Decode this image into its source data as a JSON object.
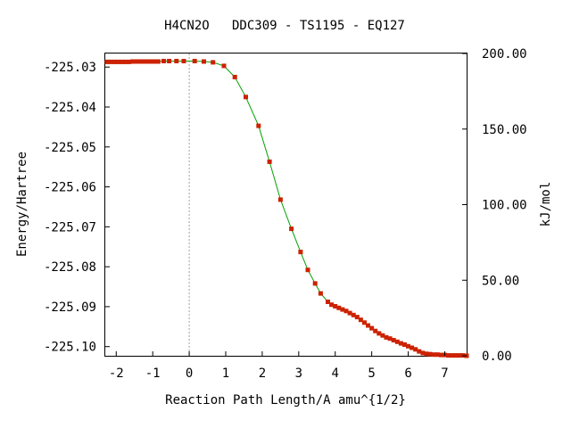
{
  "chart_data": {
    "type": "scatter",
    "title": "H4CN2O   DDC309 - TS1195 - EQ127",
    "xlabel": "Reaction Path Length/A amu^{1/2}",
    "ylabel": "Energy/Hartree",
    "y2label": "kJ/mol",
    "xlim": [
      -2.3,
      7.6
    ],
    "ylim": [
      -225.1023,
      -225.0266
    ],
    "y2lim": [
      0.0,
      200.0
    ],
    "x_ticks": [
      "-2",
      "-1",
      "0",
      "1",
      "2",
      "3",
      "4",
      "5",
      "6",
      "7"
    ],
    "y_ticks": [
      "-225.03",
      "-225.04",
      "-225.05",
      "-225.06",
      "-225.07",
      "-225.08",
      "-225.09",
      "-225.10"
    ],
    "y2_ticks": [
      "0.00",
      "50.00",
      "100.00",
      "150.00",
      "200.00"
    ],
    "grid": false,
    "ts_marker_x": 0,
    "colors": {
      "line": "#00a000",
      "points": "#cc2200",
      "ts_line": "#a0a0a0"
    },
    "series": [
      {
        "values": [
          [
            -2.25,
            -225.0287
          ],
          [
            -2.15,
            -225.0287
          ],
          [
            -2.05,
            -225.0287
          ],
          [
            -1.95,
            -225.0287
          ],
          [
            -1.85,
            -225.0287
          ],
          [
            -1.75,
            -225.0287
          ],
          [
            -1.65,
            -225.0287
          ],
          [
            -1.55,
            -225.0286
          ],
          [
            -1.45,
            -225.0286
          ],
          [
            -1.35,
            -225.0286
          ],
          [
            -1.25,
            -225.0286
          ],
          [
            -1.15,
            -225.0286
          ],
          [
            -1.05,
            -225.0286
          ],
          [
            -0.95,
            -225.0286
          ],
          [
            -0.85,
            -225.0286
          ],
          [
            -0.7,
            -225.0285
          ],
          [
            -0.55,
            -225.0285
          ],
          [
            -0.35,
            -225.0285
          ],
          [
            -0.15,
            -225.0285
          ],
          [
            0.15,
            -225.0285
          ],
          [
            0.4,
            -225.0286
          ],
          [
            0.65,
            -225.0288
          ],
          [
            0.95,
            -225.0297
          ],
          [
            1.25,
            -225.0325
          ],
          [
            1.55,
            -225.0375
          ],
          [
            1.9,
            -225.0447
          ],
          [
            2.2,
            -225.0537
          ],
          [
            2.5,
            -225.0632
          ],
          [
            2.8,
            -225.0705
          ],
          [
            3.05,
            -225.0763
          ],
          [
            3.25,
            -225.0808
          ],
          [
            3.45,
            -225.0842
          ],
          [
            3.6,
            -225.0867
          ],
          [
            3.8,
            -225.0888
          ],
          [
            3.9,
            -225.0895
          ],
          [
            4.0,
            -225.0899
          ],
          [
            4.1,
            -225.0903
          ],
          [
            4.2,
            -225.0907
          ],
          [
            4.3,
            -225.0911
          ],
          [
            4.4,
            -225.0916
          ],
          [
            4.5,
            -225.0921
          ],
          [
            4.6,
            -225.0926
          ],
          [
            4.7,
            -225.0933
          ],
          [
            4.8,
            -225.094
          ],
          [
            4.9,
            -225.0947
          ],
          [
            5.0,
            -225.0954
          ],
          [
            5.1,
            -225.0961
          ],
          [
            5.2,
            -225.0967
          ],
          [
            5.3,
            -225.0972
          ],
          [
            5.4,
            -225.0977
          ],
          [
            5.5,
            -225.098
          ],
          [
            5.6,
            -225.0984
          ],
          [
            5.7,
            -225.0988
          ],
          [
            5.8,
            -225.0992
          ],
          [
            5.9,
            -225.0995
          ],
          [
            6.0,
            -225.0999
          ],
          [
            6.1,
            -225.1003
          ],
          [
            6.2,
            -225.1007
          ],
          [
            6.3,
            -225.1012
          ],
          [
            6.4,
            -225.1016
          ],
          [
            6.5,
            -225.1018
          ],
          [
            6.6,
            -225.1019
          ],
          [
            6.7,
            -225.102
          ],
          [
            6.8,
            -225.102
          ],
          [
            6.9,
            -225.1021
          ],
          [
            7.0,
            -225.1021
          ],
          [
            7.1,
            -225.1022
          ],
          [
            7.2,
            -225.1022
          ],
          [
            7.3,
            -225.1022
          ],
          [
            7.4,
            -225.1022
          ],
          [
            7.5,
            -225.1022
          ],
          [
            7.6,
            -225.1023
          ]
        ]
      }
    ]
  }
}
